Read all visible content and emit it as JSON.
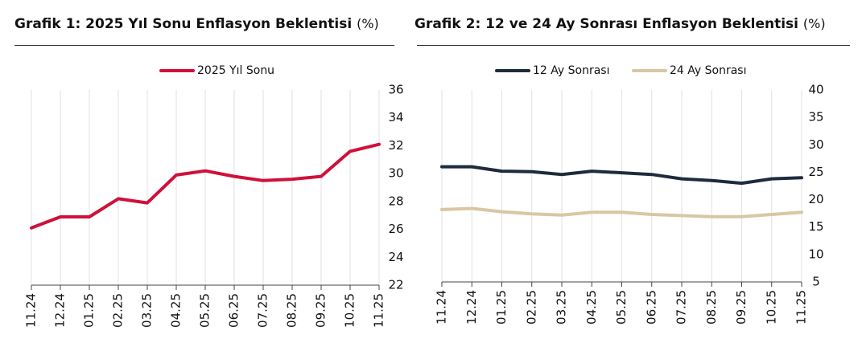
{
  "panels": [
    {
      "title": "Grafik 1: 2025 Yıl Sonu Enflasyon Beklentisi",
      "unit": "(%)"
    },
    {
      "title": "Grafik 2: 12 ve 24 Ay Sonrası Enflasyon Beklentisi",
      "unit": "(%)"
    }
  ],
  "chart_data": [
    {
      "type": "line",
      "title": "Grafik 1: 2025 Yıl Sonu Enflasyon Beklentisi (%)",
      "categories": [
        "11.24",
        "12.24",
        "01.25",
        "02.25",
        "03.25",
        "04.25",
        "05.25",
        "06.25",
        "07.25",
        "08.25",
        "09.25",
        "10.25",
        "11.25"
      ],
      "series": [
        {
          "name": "2025 Yıl Sonu",
          "color": "#d0103a",
          "values": [
            26.1,
            26.9,
            26.9,
            28.2,
            27.9,
            29.9,
            30.2,
            29.8,
            29.5,
            29.6,
            29.8,
            31.6,
            32.1
          ]
        }
      ],
      "yaxis": "right",
      "ylim": [
        22,
        36
      ],
      "yticks": [
        22,
        24,
        26,
        28,
        30,
        32,
        34,
        36
      ],
      "grid": "vertical",
      "legend": "top-center"
    },
    {
      "type": "line",
      "title": "Grafik 2: 12 ve 24 Ay Sonrası Enflasyon Beklentisi (%)",
      "categories": [
        "11.24",
        "12.24",
        "01.25",
        "02.25",
        "03.25",
        "04.25",
        "05.25",
        "06.25",
        "07.25",
        "08.25",
        "09.25",
        "10.25",
        "11.25"
      ],
      "series": [
        {
          "name": "12 Ay Sonrası",
          "color": "#1e2b3c",
          "values": [
            26.0,
            26.0,
            25.2,
            25.1,
            24.6,
            25.2,
            24.9,
            24.6,
            23.8,
            23.5,
            23.0,
            23.8,
            24.0
          ]
        },
        {
          "name": "24 Ay Sonrası",
          "color": "#d8c7a3",
          "values": [
            18.2,
            18.4,
            17.8,
            17.4,
            17.2,
            17.7,
            17.7,
            17.3,
            17.1,
            16.9,
            16.9,
            17.3,
            17.7
          ]
        }
      ],
      "yaxis": "right",
      "ylim": [
        5,
        40
      ],
      "yticks": [
        5,
        10,
        15,
        20,
        25,
        30,
        35,
        40
      ],
      "grid": "vertical",
      "legend": "top-center"
    }
  ]
}
